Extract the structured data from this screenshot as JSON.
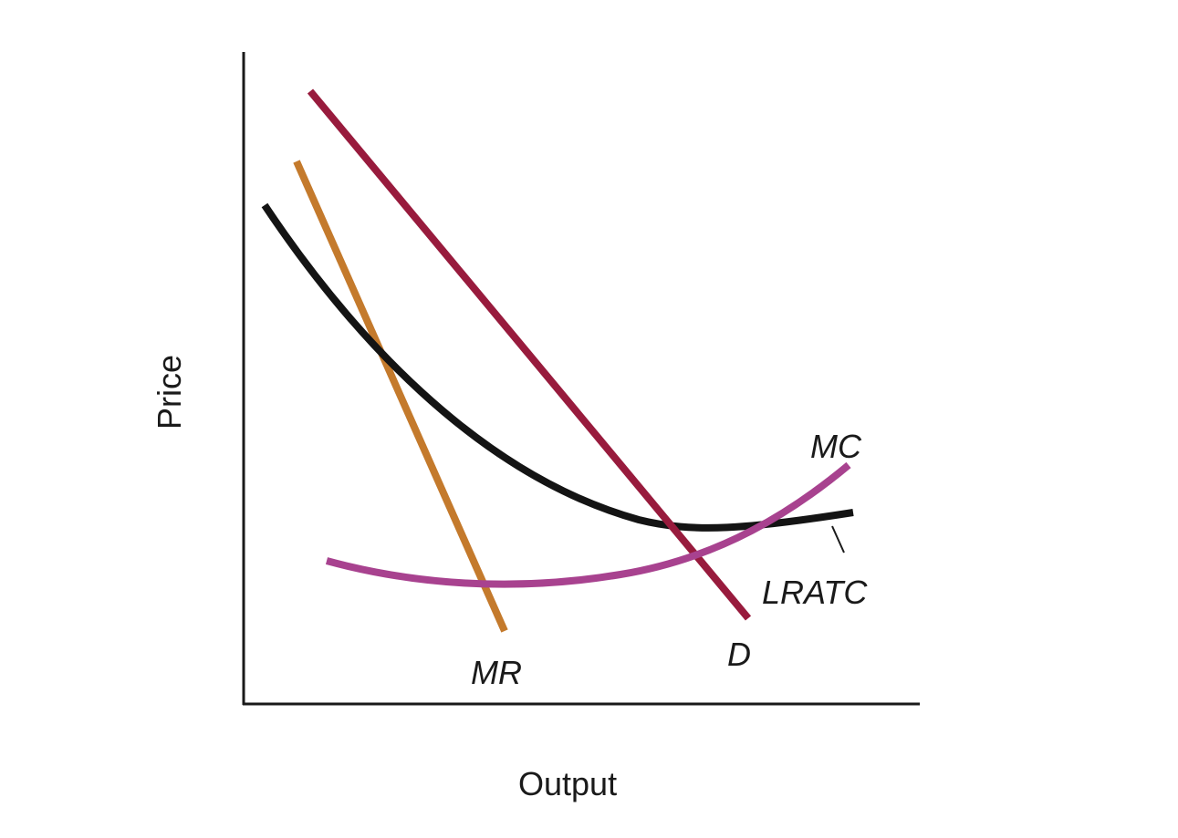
{
  "axes": {
    "x_label": "Output",
    "y_label": "Price"
  },
  "curves": {
    "mc": {
      "label": "MC",
      "color": "#a8428f"
    },
    "lratc": {
      "label": "LRATC",
      "color": "#141414"
    },
    "mr": {
      "label": "MR",
      "color": "#c47a2c"
    },
    "d": {
      "label": "D",
      "color": "#981b3d"
    }
  }
}
